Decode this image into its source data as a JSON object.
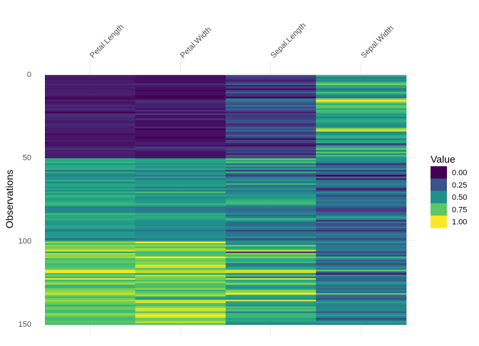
{
  "chart_data": {
    "type": "heatmap",
    "title": "",
    "xlabel": "",
    "ylabel": "Observations",
    "columns": [
      "Petal.Length",
      "Petal.Width",
      "Sepal.Length",
      "Sepal.Width"
    ],
    "y_ticks": [
      0,
      50,
      100,
      150
    ],
    "ylim": [
      0,
      150
    ],
    "y_reversed": true,
    "colormap": "viridis",
    "grid": true,
    "legend": {
      "title": "Value",
      "placement": "right",
      "breaks": [
        "0.00",
        "0.25",
        "0.50",
        "0.75",
        "1.00"
      ],
      "colors": [
        "#440154",
        "#3b528b",
        "#21908c",
        "#5dc863",
        "#fde725"
      ]
    },
    "rows": [
      [
        0.07,
        0.04,
        0.22,
        0.63
      ],
      [
        0.07,
        0.04,
        0.17,
        0.42
      ],
      [
        0.05,
        0.04,
        0.11,
        0.5
      ],
      [
        0.08,
        0.04,
        0.08,
        0.46
      ],
      [
        0.07,
        0.04,
        0.19,
        0.67
      ],
      [
        0.12,
        0.13,
        0.31,
        0.79
      ],
      [
        0.07,
        0.08,
        0.08,
        0.58
      ],
      [
        0.08,
        0.04,
        0.19,
        0.58
      ],
      [
        0.07,
        0.04,
        0.03,
        0.38
      ],
      [
        0.08,
        0,
        0.17,
        0.46
      ],
      [
        0.08,
        0.04,
        0.31,
        0.71
      ],
      [
        0.1,
        0.04,
        0.14,
        0.58
      ],
      [
        0.07,
        0,
        0.14,
        0.42
      ],
      [
        0.02,
        0,
        0,
        0.42
      ],
      [
        0.03,
        0.04,
        0.42,
        0.83
      ],
      [
        0.08,
        0.13,
        0.39,
        1
      ],
      [
        0.05,
        0.13,
        0.31,
        0.79
      ],
      [
        0.07,
        0.08,
        0.22,
        0.63
      ],
      [
        0.12,
        0.08,
        0.39,
        0.75
      ],
      [
        0.08,
        0.08,
        0.22,
        0.75
      ],
      [
        0.12,
        0.04,
        0.31,
        0.58
      ],
      [
        0.08,
        0.13,
        0.22,
        0.71
      ],
      [
        0,
        0.04,
        0.08,
        0.67
      ],
      [
        0.12,
        0.17,
        0.22,
        0.54
      ],
      [
        0.15,
        0.04,
        0.14,
        0.58
      ],
      [
        0.1,
        0.04,
        0.19,
        0.42
      ],
      [
        0.1,
        0.13,
        0.19,
        0.58
      ],
      [
        0.08,
        0.04,
        0.25,
        0.63
      ],
      [
        0.07,
        0.04,
        0.25,
        0.58
      ],
      [
        0.1,
        0.04,
        0.11,
        0.5
      ],
      [
        0.1,
        0.04,
        0.14,
        0.46
      ],
      [
        0.08,
        0.13,
        0.31,
        0.58
      ],
      [
        0.08,
        0,
        0.25,
        0.88
      ],
      [
        0.07,
        0.04,
        0.33,
        0.92
      ],
      [
        0.08,
        0.04,
        0.17,
        0.46
      ],
      [
        0.03,
        0.04,
        0.19,
        0.5
      ],
      [
        0.05,
        0.04,
        0.33,
        0.63
      ],
      [
        0.07,
        0,
        0.17,
        0.67
      ],
      [
        0.05,
        0.04,
        0.03,
        0.42
      ],
      [
        0.08,
        0.04,
        0.22,
        0.58
      ],
      [
        0.05,
        0.08,
        0.19,
        0.63
      ],
      [
        0.05,
        0.08,
        0.06,
        0.13
      ],
      [
        0.05,
        0.04,
        0.03,
        0.5
      ],
      [
        0.1,
        0.21,
        0.19,
        0.63
      ],
      [
        0.15,
        0.13,
        0.22,
        0.75
      ],
      [
        0.07,
        0.08,
        0.14,
        0.42
      ],
      [
        0.1,
        0.04,
        0.22,
        0.75
      ],
      [
        0.07,
        0.04,
        0.08,
        0.5
      ],
      [
        0.08,
        0.04,
        0.28,
        0.71
      ],
      [
        0.07,
        0.04,
        0.19,
        0.54
      ],
      [
        0.63,
        0.54,
        0.75,
        0.5
      ],
      [
        0.59,
        0.58,
        0.58,
        0.5
      ],
      [
        0.66,
        0.58,
        0.72,
        0.46
      ],
      [
        0.51,
        0.5,
        0.33,
        0.13
      ],
      [
        0.61,
        0.58,
        0.61,
        0.33
      ],
      [
        0.59,
        0.5,
        0.39,
        0.33
      ],
      [
        0.63,
        0.63,
        0.56,
        0.54
      ],
      [
        0.39,
        0.38,
        0.17,
        0.17
      ],
      [
        0.61,
        0.5,
        0.64,
        0.38
      ],
      [
        0.49,
        0.54,
        0.25,
        0.29
      ],
      [
        0.42,
        0.38,
        0.19,
        0
      ],
      [
        0.54,
        0.58,
        0.44,
        0.42
      ],
      [
        0.51,
        0.38,
        0.47,
        0.08
      ],
      [
        0.63,
        0.54,
        0.5,
        0.38
      ],
      [
        0.44,
        0.5,
        0.36,
        0.38
      ],
      [
        0.58,
        0.54,
        0.67,
        0.46
      ],
      [
        0.59,
        0.58,
        0.36,
        0.42
      ],
      [
        0.53,
        0.38,
        0.42,
        0.29
      ],
      [
        0.59,
        0.58,
        0.53,
        0.08
      ],
      [
        0.49,
        0.42,
        0.36,
        0.21
      ],
      [
        0.64,
        0.71,
        0.44,
        0.5
      ],
      [
        0.51,
        0.5,
        0.5,
        0.33
      ],
      [
        0.66,
        0.58,
        0.56,
        0.21
      ],
      [
        0.63,
        0.46,
        0.5,
        0.33
      ],
      [
        0.56,
        0.5,
        0.58,
        0.38
      ],
      [
        0.58,
        0.54,
        0.64,
        0.42
      ],
      [
        0.64,
        0.54,
        0.69,
        0.33
      ],
      [
        0.68,
        0.67,
        0.67,
        0.42
      ],
      [
        0.59,
        0.58,
        0.47,
        0.38
      ],
      [
        0.42,
        0.38,
        0.39,
        0.25
      ],
      [
        0.47,
        0.42,
        0.33,
        0.17
      ],
      [
        0.46,
        0.38,
        0.33,
        0.17
      ],
      [
        0.49,
        0.46,
        0.42,
        0.29
      ],
      [
        0.69,
        0.63,
        0.47,
        0.29
      ],
      [
        0.59,
        0.58,
        0.31,
        0.42
      ],
      [
        0.59,
        0.63,
        0.47,
        0.58
      ],
      [
        0.63,
        0.58,
        0.67,
        0.46
      ],
      [
        0.58,
        0.5,
        0.56,
        0.13
      ],
      [
        0.53,
        0.5,
        0.36,
        0.42
      ],
      [
        0.51,
        0.5,
        0.33,
        0.21
      ],
      [
        0.58,
        0.46,
        0.33,
        0.25
      ],
      [
        0.61,
        0.54,
        0.5,
        0.42
      ],
      [
        0.51,
        0.46,
        0.42,
        0.25
      ],
      [
        0.39,
        0.38,
        0.19,
        0.13
      ],
      [
        0.54,
        0.5,
        0.36,
        0.29
      ],
      [
        0.54,
        0.46,
        0.39,
        0.42
      ],
      [
        0.54,
        0.5,
        0.39,
        0.38
      ],
      [
        0.56,
        0.5,
        0.53,
        0.38
      ],
      [
        0.34,
        0.42,
        0.22,
        0.21
      ],
      [
        0.53,
        0.5,
        0.39,
        0.33
      ],
      [
        0.85,
        1,
        0.56,
        0.54
      ],
      [
        0.69,
        0.75,
        0.42,
        0.29
      ],
      [
        0.83,
        0.83,
        0.78,
        0.42
      ],
      [
        0.78,
        0.71,
        0.56,
        0.38
      ],
      [
        0.81,
        0.88,
        0.61,
        0.42
      ],
      [
        0.95,
        0.83,
        0.92,
        0.42
      ],
      [
        0.59,
        0.67,
        0.17,
        0.21
      ],
      [
        0.9,
        0.71,
        0.83,
        0.38
      ],
      [
        0.81,
        0.71,
        0.67,
        0.21
      ],
      [
        0.86,
        1,
        0.81,
        0.67
      ],
      [
        0.69,
        0.79,
        0.61,
        0.5
      ],
      [
        0.73,
        0.75,
        0.58,
        0.29
      ],
      [
        0.76,
        0.83,
        0.69,
        0.42
      ],
      [
        0.68,
        0.79,
        0.39,
        0.21
      ],
      [
        0.69,
        0.96,
        0.42,
        0.33
      ],
      [
        0.73,
        0.92,
        0.58,
        0.5
      ],
      [
        0.76,
        0.71,
        0.61,
        0.42
      ],
      [
        0.97,
        0.88,
        0.94,
        0.75
      ],
      [
        1,
        0.92,
        0.94,
        0.25
      ],
      [
        0.68,
        0.58,
        0.47,
        0.08
      ],
      [
        0.8,
        0.92,
        0.72,
        0.5
      ],
      [
        0.66,
        0.79,
        0.36,
        0.33
      ],
      [
        0.97,
        0.79,
        0.94,
        0.33
      ],
      [
        0.66,
        0.71,
        0.56,
        0.29
      ],
      [
        0.8,
        0.83,
        0.67,
        0.54
      ],
      [
        0.85,
        0.71,
        0.81,
        0.5
      ],
      [
        0.64,
        0.71,
        0.53,
        0.33
      ],
      [
        0.66,
        0.71,
        0.5,
        0.42
      ],
      [
        0.78,
        0.83,
        0.58,
        0.33
      ],
      [
        0.81,
        0.63,
        0.81,
        0.42
      ],
      [
        0.86,
        0.75,
        0.86,
        0.33
      ],
      [
        0.92,
        0.79,
        1,
        0.75
      ],
      [
        0.78,
        0.88,
        0.58,
        0.33
      ],
      [
        0.69,
        0.58,
        0.56,
        0.33
      ],
      [
        0.78,
        0.54,
        0.5,
        0.25
      ],
      [
        0.86,
        0.92,
        0.94,
        0.42
      ],
      [
        0.78,
        0.96,
        0.56,
        0.58
      ],
      [
        0.76,
        0.71,
        0.58,
        0.46
      ],
      [
        0.64,
        0.71,
        0.47,
        0.42
      ],
      [
        0.75,
        0.83,
        0.72,
        0.46
      ],
      [
        0.78,
        0.96,
        0.67,
        0.46
      ],
      [
        0.69,
        0.92,
        0.72,
        0.46
      ],
      [
        0.69,
        0.75,
        0.42,
        0.29
      ],
      [
        0.83,
        0.92,
        0.69,
        0.5
      ],
      [
        0.8,
        1,
        0.67,
        0.54
      ],
      [
        0.71,
        0.92,
        0.67,
        0.42
      ],
      [
        0.68,
        0.75,
        0.56,
        0.21
      ],
      [
        0.71,
        0.79,
        0.61,
        0.42
      ],
      [
        0.75,
        0.92,
        0.53,
        0.58
      ],
      [
        0.69,
        0.71,
        0.44,
        0.42
      ]
    ]
  }
}
